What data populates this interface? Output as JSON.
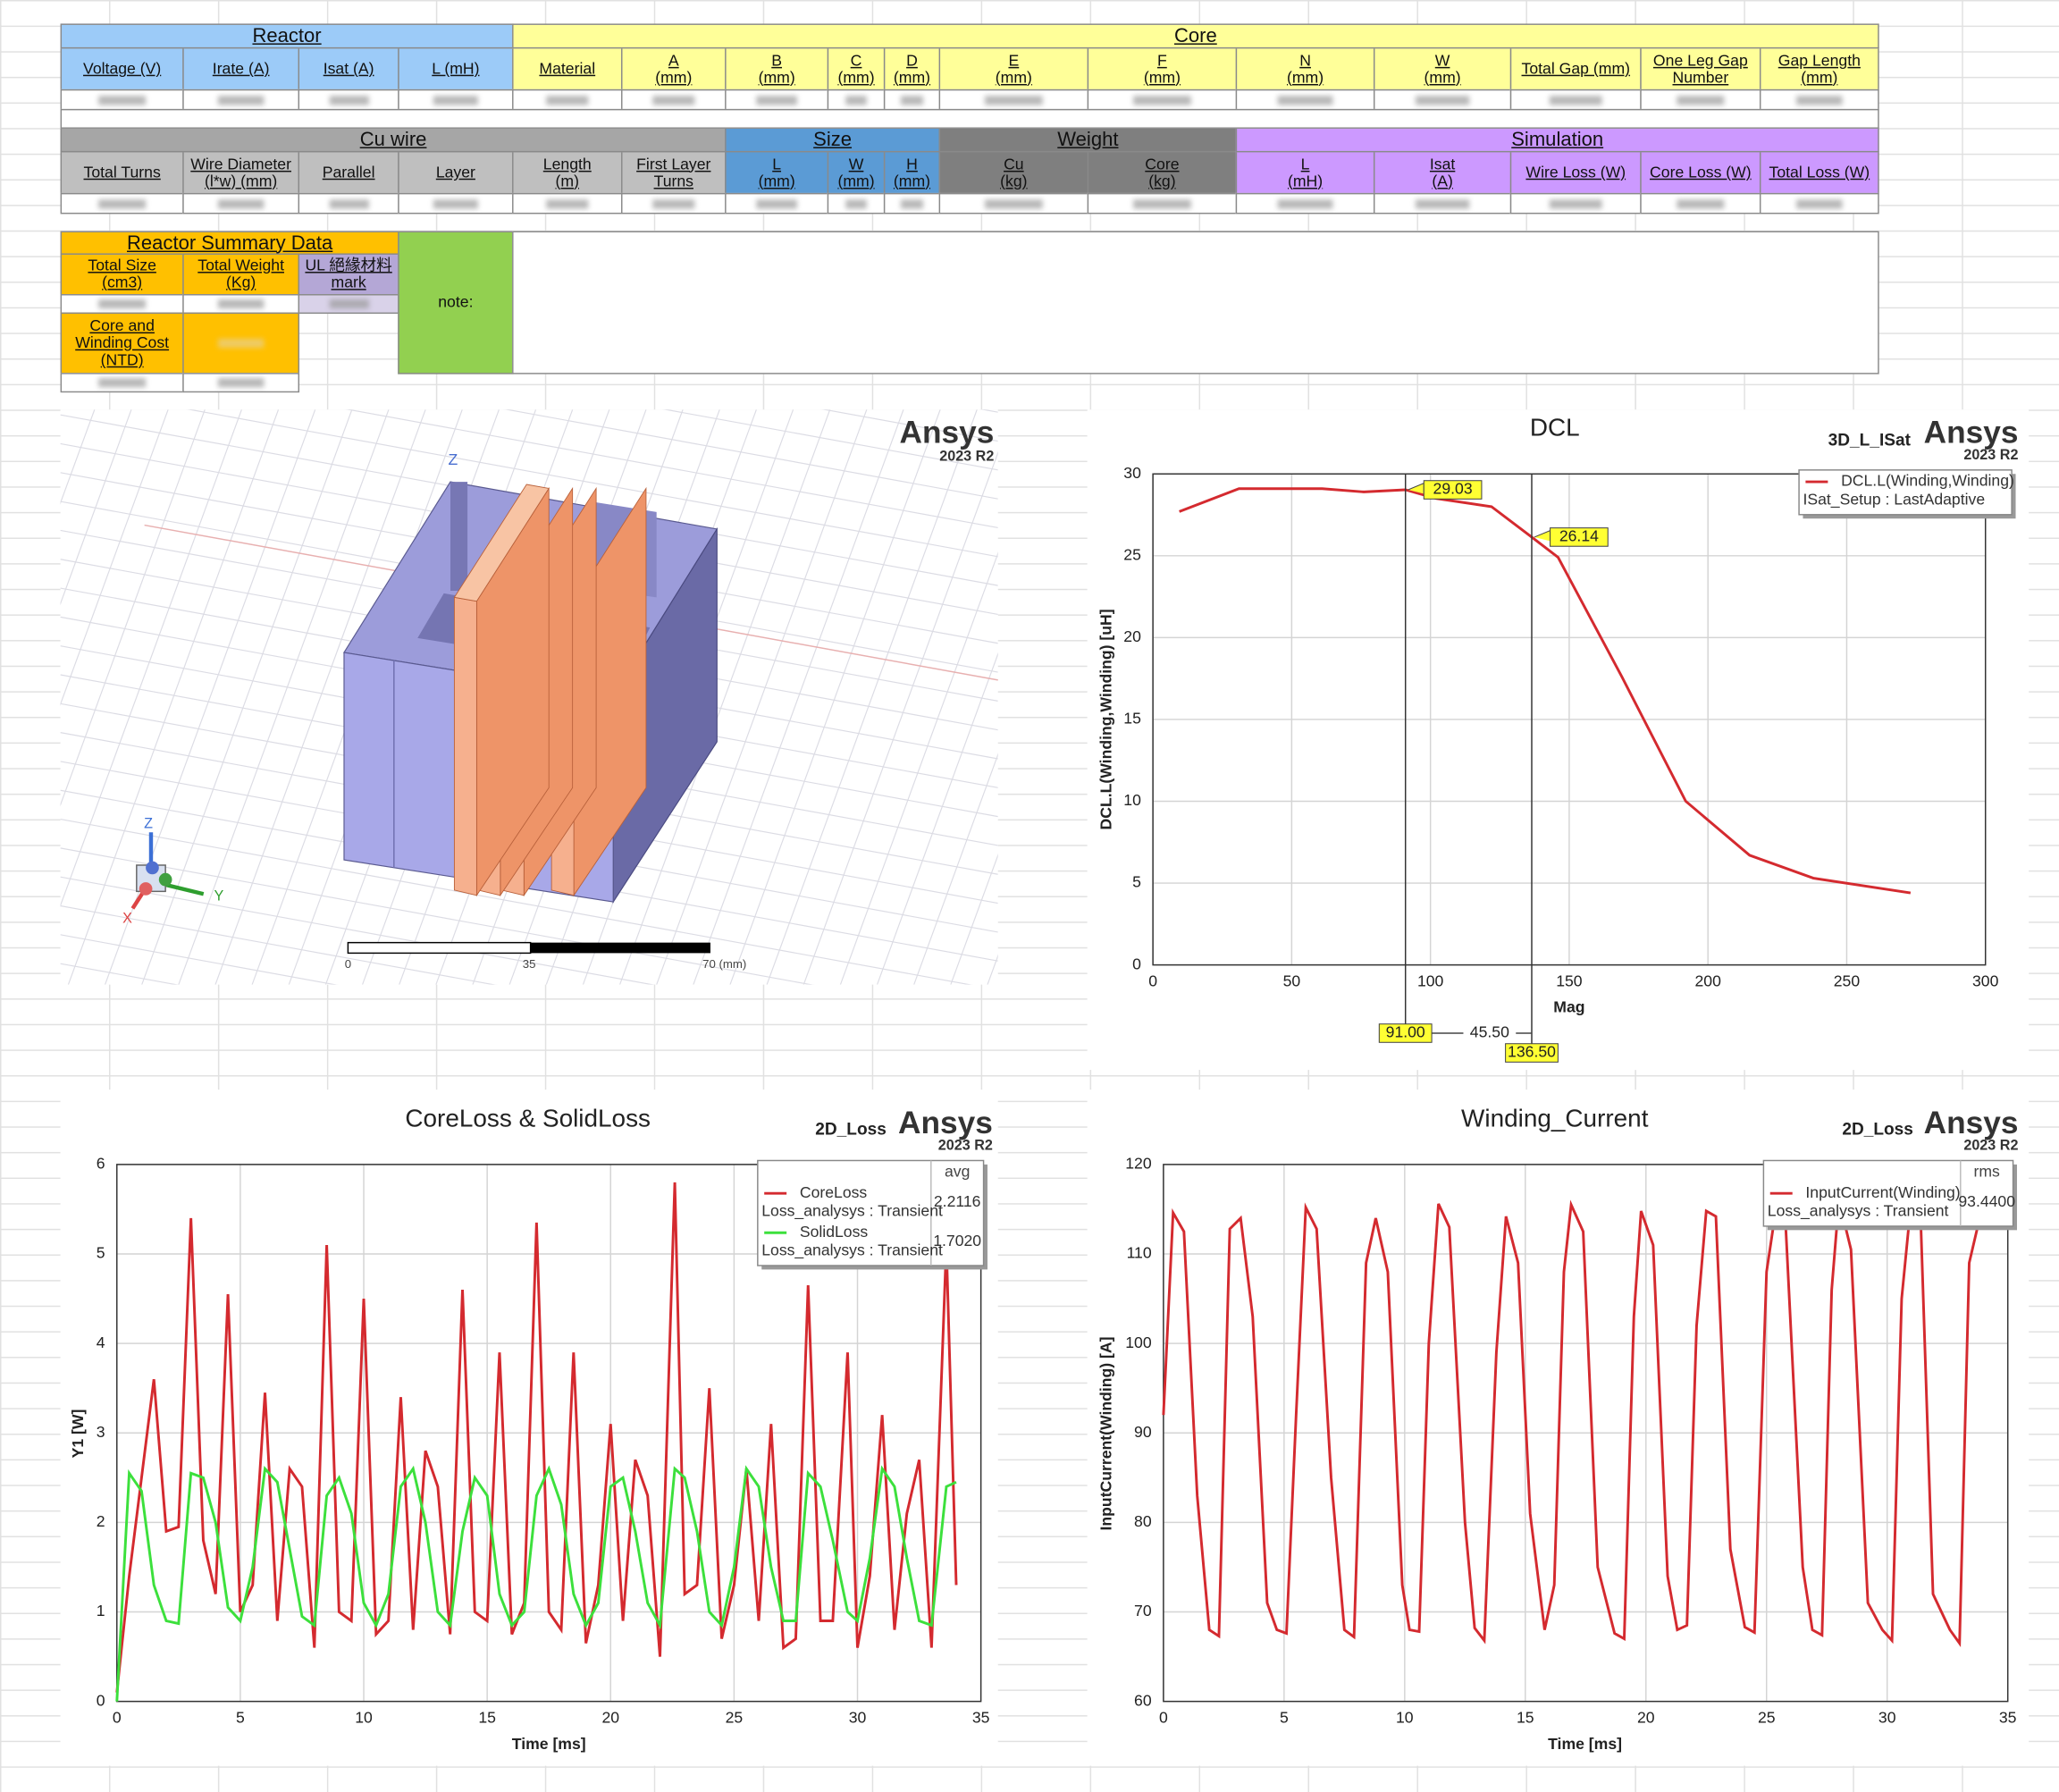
{
  "table": {
    "sections": [
      {
        "groups": [
          {
            "text": "Reactor",
            "color": "#9ccbf8",
            "header_color": "#9ccbf8",
            "headers": [
              "Voltage (V)",
              "Irate (A)",
              "Isat (A)",
              "L (mH)"
            ]
          },
          {
            "text": "Core",
            "color": "#ffff99",
            "header_color": "#ffff99",
            "headers": [
              "Material",
              "A\n(mm)",
              "B\n(mm)",
              "C\n(mm)",
              "D\n(mm)",
              "E\n(mm)",
              "F\n(mm)",
              "N\n(mm)",
              "W\n(mm)",
              "Total Gap (mm)",
              "One Leg Gap\nNumber",
              "Gap Length\n(mm)"
            ]
          }
        ]
      },
      {
        "groups": [
          {
            "text": "Cu wire",
            "color": "#a6a6a6",
            "header_color": "#bfbfbf",
            "headers": [
              "Total Turns",
              "Wire Diameter\n(l*w) (mm)",
              "Parallel",
              "Layer",
              "Length\n(m)",
              "First Layer\nTurns"
            ]
          },
          {
            "text": "Size",
            "color": "#5b9bd5",
            "header_color": "#5b9bd5",
            "headers": [
              "L\n(mm)",
              "W\n(mm)",
              "H\n(mm)"
            ]
          },
          {
            "text": "Weight",
            "color": "#7f7f7f",
            "header_color": "#7f7f7f",
            "headers": [
              "Cu\n(kg)",
              "Core\n(kg)"
            ]
          },
          {
            "text": "Simulation",
            "color": "#cc99ff",
            "header_color": "#cc99ff",
            "headers": [
              "L\n(mH)",
              "Isat\n(A)",
              "Wire Loss (W)",
              "Core Loss (W)",
              "Total Loss (W)"
            ]
          }
        ]
      }
    ],
    "summary": {
      "title": "Reactor Summary Data",
      "color": "#ffc000",
      "headers": [
        "Total Size\n(cm3)",
        "Total Weight\n(Kg)",
        "UL 絕緣材料\nmark"
      ],
      "ul_color": "#b4a7d6",
      "cost_header": "Core and\nWinding Cost\n(NTD)",
      "note": "note:",
      "note_color": "#92d050"
    }
  },
  "model_view": {
    "brand": "Ansys",
    "version": "2023 R2",
    "view_axis": "Z",
    "triad": [
      "Z",
      "Y",
      "X"
    ],
    "scale_labels": [
      "0",
      "35",
      "70 (mm)"
    ]
  },
  "chart_data": [
    {
      "type": "line",
      "title": "DCL",
      "tag": "3D_L_ISat",
      "brand": "Ansys",
      "version": "2023 R2",
      "x_label": "Mag",
      "y_label": "DCL.L(Winding,Winding) [uH]",
      "xlim": [
        0,
        300
      ],
      "xticks": [
        0,
        50,
        100,
        150,
        200,
        250,
        300
      ],
      "ylim": [
        0,
        30
      ],
      "yticks": [
        0,
        5,
        10,
        15,
        20,
        25,
        30
      ],
      "grid": true,
      "legend": "upper right",
      "x": [
        9.5,
        31,
        61,
        76,
        91,
        102,
        122,
        136.5,
        146,
        169,
        192,
        215,
        238,
        273
      ],
      "series": [
        {
          "name": "DCL.L(Winding,Winding)",
          "source": "ISat_Setup : LastAdaptive",
          "color": "#d42a2f",
          "values": [
            27.7,
            29.1,
            29.1,
            28.9,
            29.03,
            28.5,
            28.0,
            26.14,
            24.9,
            17.6,
            10.0,
            6.7,
            5.3,
            4.4
          ]
        }
      ],
      "markers": [
        {
          "x": 91,
          "x_label": "91.00",
          "y": 29.03
        },
        {
          "x": 136.5,
          "x_label": "136.50",
          "y": 26.14
        }
      ],
      "delta": {
        "value": 45.5,
        "label": "45.50"
      }
    },
    {
      "type": "line",
      "title": "CoreLoss & SolidLoss",
      "tag": "2D_Loss",
      "brand": "Ansys",
      "version": "2023 R2",
      "x_label": "Time [ms]",
      "y_label": "Y1 [W]",
      "xlim": [
        0,
        35
      ],
      "xticks": [
        0,
        5,
        10,
        15,
        20,
        25,
        30,
        35
      ],
      "ylim": [
        0,
        6
      ],
      "yticks": [
        0,
        1,
        2,
        3,
        4,
        5,
        6
      ],
      "grid": true,
      "legend": "upper right",
      "legend_stat": "avg",
      "x": [
        0,
        0.5,
        1,
        1.5,
        2,
        2.5,
        3,
        3.5,
        4,
        4.5,
        5,
        5.5,
        6,
        6.5,
        7,
        7.5,
        8,
        8.5,
        9,
        9.5,
        10,
        10.5,
        11,
        11.5,
        12,
        12.5,
        13,
        13.5,
        14,
        14.5,
        15,
        15.5,
        16,
        16.5,
        17,
        17.5,
        18,
        18.5,
        19,
        19.5,
        20,
        20.5,
        21,
        21.5,
        22,
        22.6,
        23,
        23.5,
        24,
        24.5,
        25,
        25.5,
        26,
        26.5,
        27,
        27.5,
        28,
        28.5,
        29,
        29.6,
        30,
        30.5,
        31,
        31.5,
        32,
        32.5,
        33,
        33.6,
        34
      ],
      "series": [
        {
          "name": "CoreLoss",
          "source": "Loss_analysys : Transient",
          "color": "#d42a2f",
          "stat": 2.2116,
          "values": [
            0.1,
            1.4,
            2.5,
            3.6,
            1.9,
            1.95,
            5.4,
            1.8,
            1.2,
            4.55,
            1.0,
            1.3,
            3.45,
            0.9,
            2.6,
            2.4,
            0.6,
            5.1,
            1.0,
            0.9,
            4.5,
            0.75,
            0.9,
            3.4,
            0.8,
            2.8,
            2.4,
            0.75,
            4.6,
            1.0,
            0.9,
            3.9,
            0.75,
            1.1,
            5.35,
            1.0,
            0.8,
            3.9,
            0.65,
            1.3,
            3.1,
            0.9,
            2.7,
            2.3,
            0.5,
            5.8,
            1.2,
            1.3,
            3.5,
            0.7,
            1.3,
            2.6,
            0.9,
            3.1,
            0.6,
            0.7,
            4.65,
            0.9,
            0.9,
            3.9,
            0.6,
            1.4,
            3.2,
            0.8,
            2.1,
            2.7,
            0.6,
            5.1,
            1.3
          ]
        },
        {
          "name": "SolidLoss",
          "source": "Loss_analysys : Transient",
          "color": "#3ce03c",
          "stat": 1.702,
          "stat_label": "1.7020",
          "values": [
            0.0,
            2.55,
            2.35,
            1.3,
            0.9,
            0.87,
            2.55,
            2.5,
            2.0,
            1.05,
            0.9,
            1.5,
            2.6,
            2.45,
            1.7,
            0.95,
            0.85,
            2.3,
            2.5,
            2.1,
            1.1,
            0.85,
            1.2,
            2.4,
            2.6,
            2.0,
            1.0,
            0.85,
            1.9,
            2.5,
            2.3,
            1.2,
            0.85,
            1.0,
            2.3,
            2.6,
            2.2,
            1.2,
            0.85,
            1.1,
            2.4,
            2.5,
            1.9,
            1.1,
            0.85,
            2.6,
            2.5,
            1.9,
            1.0,
            0.85,
            1.5,
            2.6,
            2.4,
            1.5,
            0.9,
            0.9,
            2.55,
            2.4,
            1.8,
            1.0,
            0.9,
            1.6,
            2.6,
            2.4,
            1.6,
            0.9,
            0.85,
            2.4,
            2.45
          ]
        }
      ]
    },
    {
      "type": "line",
      "title": "Winding_Current",
      "tag": "2D_Loss",
      "brand": "Ansys",
      "version": "2023 R2",
      "x_label": "Time [ms]",
      "y_label": "InputCurrent(Winding) [A]",
      "xlim": [
        0,
        35
      ],
      "xticks": [
        0,
        5,
        10,
        15,
        20,
        25,
        30,
        35
      ],
      "ylim": [
        60,
        120
      ],
      "yticks": [
        60,
        70,
        80,
        90,
        100,
        110,
        120
      ],
      "grid": true,
      "legend": "upper right",
      "legend_stat": "rms",
      "x": [
        0,
        0.4,
        0.85,
        1.4,
        1.9,
        2.3,
        2.75,
        3.2,
        3.7,
        4.3,
        4.7,
        5.1,
        5.5,
        5.9,
        6.35,
        6.95,
        7.5,
        7.9,
        8.4,
        8.8,
        9.3,
        9.9,
        10.2,
        10.6,
        11.0,
        11.4,
        11.85,
        12.5,
        12.9,
        13.3,
        13.8,
        14.2,
        14.7,
        15.2,
        15.8,
        16.2,
        16.6,
        16.9,
        17.4,
        18.0,
        18.7,
        19.1,
        19.5,
        19.8,
        20.3,
        20.9,
        21.3,
        21.7,
        22.1,
        22.5,
        22.9,
        23.5,
        24.1,
        24.5,
        25.0,
        25.4,
        25.8,
        26.5,
        26.9,
        27.3,
        27.7,
        28.0,
        28.5,
        29.2,
        29.8,
        30.2,
        30.6,
        31.0,
        31.4,
        31.9,
        32.6,
        33.0,
        33.4,
        33.8
      ],
      "series": [
        {
          "name": "InputCurrent(Winding)",
          "source": "Loss_analysys : Transient",
          "color": "#d42a2f",
          "stat": 93.44,
          "stat_label": "93.4400",
          "values": [
            92,
            114.6,
            112.5,
            83,
            68,
            67.3,
            112.8,
            114,
            103,
            71,
            68,
            67.6,
            92,
            115.2,
            112.8,
            85,
            68,
            67.2,
            109,
            114,
            108,
            73,
            68,
            67.8,
            100,
            115.6,
            113,
            80,
            68.2,
            66.8,
            99,
            114.2,
            109,
            81,
            68,
            73,
            108,
            115.5,
            112.5,
            75,
            67.6,
            67,
            103,
            114.8,
            111,
            74,
            68,
            68.5,
            102,
            114.8,
            114.2,
            77,
            68.3,
            67.7,
            108,
            115.2,
            112.8,
            75,
            68,
            67.4,
            106,
            116,
            110.5,
            71,
            68,
            66.8,
            105,
            116,
            113,
            72,
            68,
            66.5,
            109,
            113.6
          ]
        }
      ]
    }
  ]
}
